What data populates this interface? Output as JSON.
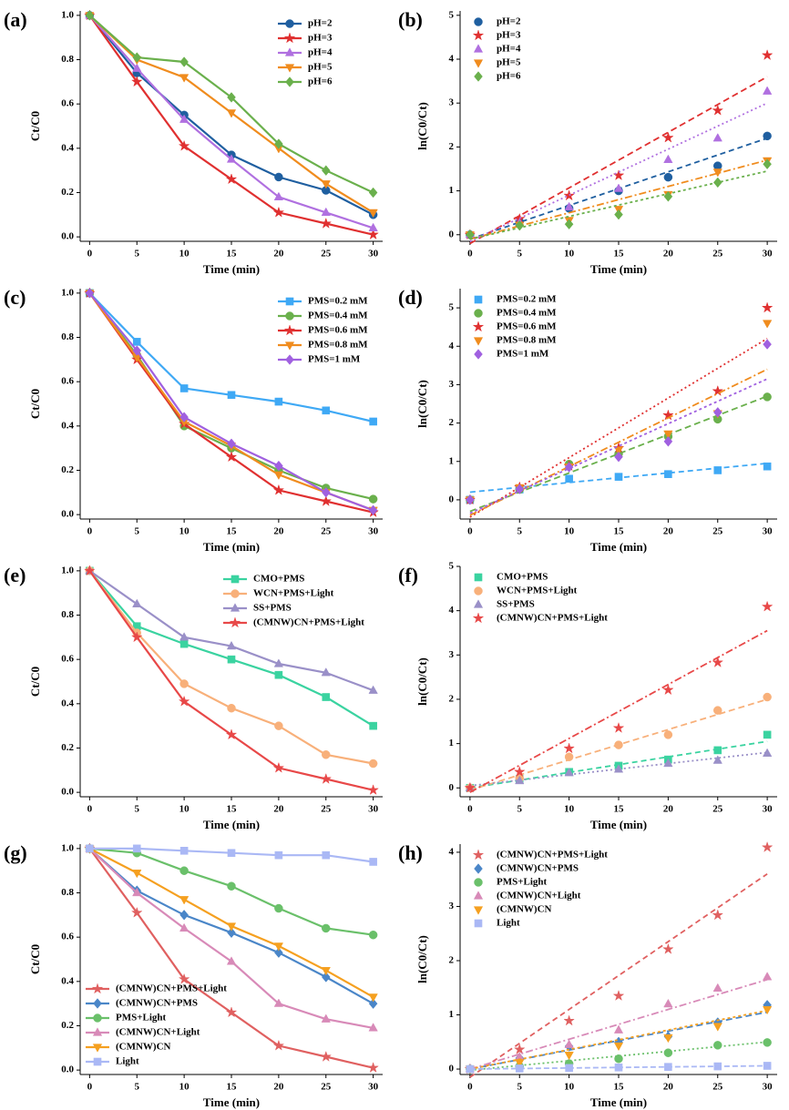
{
  "chart_data": [
    {
      "type": "line",
      "label": "(a)",
      "x_label": "Time (min)",
      "y_label": "Ct/C0",
      "legend": "upper right",
      "x": [
        0,
        5,
        10,
        15,
        20,
        25,
        30
      ],
      "xlim": [
        -1,
        31
      ],
      "xticks": [
        0,
        5,
        10,
        15,
        20,
        25,
        30
      ],
      "ylim": [
        -0.02,
        1.02
      ],
      "yticks": [
        {
          "value": 0,
          "label": "0.0"
        },
        0.2,
        0.4,
        0.6,
        0.8,
        {
          "value": 1,
          "label": "1.0"
        }
      ],
      "series": [
        {
          "name": "pH=2",
          "color": "#1f5fa0",
          "marker": "circle",
          "values": [
            1,
            0.74,
            0.55,
            0.37,
            0.27,
            0.21,
            0.1
          ]
        },
        {
          "name": "pH=3",
          "color": "#e03030",
          "marker": "star",
          "values": [
            1,
            0.7,
            0.41,
            0.26,
            0.11,
            0.06,
            0.01
          ]
        },
        {
          "name": "pH=4",
          "color": "#b070e0",
          "marker": "triangle",
          "values": [
            1,
            0.76,
            0.53,
            0.35,
            0.18,
            0.11,
            0.04
          ]
        },
        {
          "name": "pH=5",
          "color": "#f08c1e",
          "marker": "triangle-down",
          "values": [
            1,
            0.8,
            0.72,
            0.56,
            0.4,
            0.24,
            0.11
          ]
        },
        {
          "name": "pH=6",
          "color": "#6ab04c",
          "marker": "diamond",
          "values": [
            1,
            0.81,
            0.79,
            0.63,
            0.42,
            0.3,
            0.2
          ]
        }
      ]
    },
    {
      "type": "scatter",
      "label": "(b)",
      "x_label": "Time (min)",
      "y_label": "ln(C0/Ct)",
      "legend": "upper left",
      "x": [
        0,
        5,
        10,
        15,
        20,
        25,
        30
      ],
      "fit_x": [
        0,
        30
      ],
      "xlim": [
        -1,
        31
      ],
      "xticks": [
        0,
        5,
        10,
        15,
        20,
        25,
        30
      ],
      "ylim": [
        -0.15,
        5.1
      ],
      "yticks": [
        0,
        1,
        2,
        3,
        4,
        5
      ],
      "series": [
        {
          "name": "pH=2",
          "color": "#1f5fa0",
          "marker": "circle",
          "values": [
            0,
            0.3,
            0.6,
            1.0,
            1.31,
            1.57,
            2.25
          ],
          "fit": [
            -0.1,
            2.2
          ]
        },
        {
          "name": "pH=3",
          "color": "#e03030",
          "marker": "star",
          "values": [
            0,
            0.36,
            0.89,
            1.35,
            2.21,
            2.83,
            4.09
          ],
          "fit": [
            -0.2,
            3.6
          ]
        },
        {
          "name": "pH=4",
          "color": "#b070e0",
          "marker": "triangle",
          "values": [
            0,
            0.27,
            0.63,
            1.05,
            1.71,
            2.2,
            3.27
          ],
          "fit": [
            -0.15,
            3.0
          ]
        },
        {
          "name": "pH=5",
          "color": "#f08c1e",
          "marker": "triangle-down",
          "values": [
            0,
            0.22,
            0.33,
            0.58,
            0.92,
            1.43,
            1.69
          ],
          "fit": [
            -0.1,
            1.7
          ]
        },
        {
          "name": "pH=6",
          "color": "#6ab04c",
          "marker": "diamond",
          "values": [
            0,
            0.21,
            0.24,
            0.46,
            0.87,
            1.19,
            1.61
          ],
          "fit": [
            -0.1,
            1.45
          ]
        }
      ]
    },
    {
      "type": "line",
      "label": "(c)",
      "x_label": "Time (min)",
      "y_label": "Ct/C0",
      "legend": "upper right",
      "x": [
        0,
        5,
        10,
        15,
        20,
        25,
        30
      ],
      "xlim": [
        -1,
        31
      ],
      "xticks": [
        0,
        5,
        10,
        15,
        20,
        25,
        30
      ],
      "ylim": [
        -0.02,
        1.02
      ],
      "yticks": [
        {
          "value": 0,
          "label": "0.0"
        },
        0.2,
        0.4,
        0.6,
        0.8,
        {
          "value": 1,
          "label": "1.0"
        }
      ],
      "series": [
        {
          "name": "PMS=0.2 mM",
          "color": "#3fa9f5",
          "marker": "square",
          "values": [
            1,
            0.78,
            0.57,
            0.54,
            0.51,
            0.47,
            0.42
          ]
        },
        {
          "name": "PMS=0.4 mM",
          "color": "#6ab04c",
          "marker": "circle",
          "values": [
            1,
            0.72,
            0.4,
            0.3,
            0.2,
            0.12,
            0.07
          ]
        },
        {
          "name": "PMS=0.6 mM",
          "color": "#e03030",
          "marker": "star",
          "values": [
            1,
            0.7,
            0.41,
            0.26,
            0.11,
            0.06,
            0.01
          ]
        },
        {
          "name": "PMS=0.8 mM",
          "color": "#f08c1e",
          "marker": "triangle-down",
          "values": [
            1,
            0.71,
            0.42,
            0.31,
            0.18,
            0.1,
            0.02
          ]
        },
        {
          "name": "PMS=1 mM",
          "color": "#a060e0",
          "marker": "diamond",
          "values": [
            1,
            0.74,
            0.44,
            0.32,
            0.22,
            0.1,
            0.02
          ]
        }
      ]
    },
    {
      "type": "scatter",
      "label": "(d)",
      "x_label": "Time (min)",
      "y_label": "ln(C0/Ct)",
      "legend": "upper left",
      "x": [
        0,
        5,
        10,
        15,
        20,
        25,
        30
      ],
      "fit_x": [
        0,
        30
      ],
      "xlim": [
        -1,
        31
      ],
      "xticks": [
        0,
        5,
        10,
        15,
        20,
        25,
        30
      ],
      "ylim": [
        -0.5,
        5.5
      ],
      "yticks": [
        0,
        1,
        2,
        3,
        4,
        5
      ],
      "series": [
        {
          "name": "PMS=0.2 mM",
          "color": "#3fa9f5",
          "marker": "square",
          "values": [
            0,
            0.27,
            0.55,
            0.6,
            0.67,
            0.77,
            0.87
          ],
          "fit": [
            0.2,
            0.95
          ]
        },
        {
          "name": "PMS=0.4 mM",
          "color": "#6ab04c",
          "marker": "circle",
          "values": [
            0,
            0.27,
            0.93,
            1.2,
            1.65,
            2.1,
            2.68
          ],
          "fit": [
            -0.3,
            2.7
          ]
        },
        {
          "name": "PMS=0.6 mM",
          "color": "#e03030",
          "marker": "star",
          "values": [
            0,
            0.33,
            0.88,
            1.35,
            2.2,
            2.83,
            5.0
          ],
          "fit": [
            -0.45,
            4.2
          ]
        },
        {
          "name": "PMS=0.8 mM",
          "color": "#f08c1e",
          "marker": "triangle-down",
          "values": [
            0,
            0.32,
            0.86,
            1.3,
            1.72,
            2.25,
            4.6
          ],
          "fit": [
            -0.4,
            3.4
          ]
        },
        {
          "name": "PMS=1 mM",
          "color": "#a060e0",
          "marker": "diamond",
          "values": [
            0,
            0.28,
            0.85,
            1.12,
            1.52,
            2.28,
            4.05
          ],
          "fit": [
            -0.35,
            3.15
          ]
        }
      ]
    },
    {
      "type": "line",
      "label": "(e)",
      "x_label": "Time (min)",
      "y_label": "Ct/C0",
      "legend": "upper right",
      "x": [
        0,
        5,
        10,
        15,
        20,
        25,
        30
      ],
      "xlim": [
        -1,
        31
      ],
      "xticks": [
        0,
        5,
        10,
        15,
        20,
        25,
        30
      ],
      "ylim": [
        -0.02,
        1.02
      ],
      "yticks": [
        {
          "value": 0,
          "label": "0.0"
        },
        0.2,
        0.4,
        0.6,
        0.8,
        {
          "value": 1,
          "label": "1.0"
        }
      ],
      "series": [
        {
          "name": "CMO+PMS",
          "color": "#3ad3a0",
          "marker": "square",
          "values": [
            1,
            0.75,
            0.67,
            0.6,
            0.53,
            0.43,
            0.3
          ]
        },
        {
          "name": "WCN+PMS+Light",
          "color": "#f8b07a",
          "marker": "circle",
          "values": [
            1,
            0.72,
            0.49,
            0.38,
            0.3,
            0.17,
            0.13
          ]
        },
        {
          "name": "SS+PMS",
          "color": "#9a90c8",
          "marker": "triangle",
          "values": [
            1,
            0.85,
            0.7,
            0.66,
            0.58,
            0.54,
            0.46
          ]
        },
        {
          "name": "(CMNW)CN+PMS+Light",
          "color": "#e84848",
          "marker": "star",
          "values": [
            1,
            0.7,
            0.41,
            0.26,
            0.11,
            0.06,
            0.01
          ]
        }
      ]
    },
    {
      "type": "scatter",
      "label": "(f)",
      "x_label": "Time (min)",
      "y_label": "ln(C0/Ct)",
      "legend": "upper left",
      "x": [
        0,
        5,
        10,
        15,
        20,
        25,
        30
      ],
      "fit_x": [
        0,
        30
      ],
      "xlim": [
        -1,
        31
      ],
      "xticks": [
        0,
        5,
        10,
        15,
        20,
        25,
        30
      ],
      "ylim": [
        -0.2,
        5
      ],
      "yticks": [
        0,
        1,
        2,
        3,
        4,
        5
      ],
      "series": [
        {
          "name": "CMO+PMS",
          "color": "#3ad3a0",
          "marker": "square",
          "values": [
            0,
            0.2,
            0.36,
            0.5,
            0.64,
            0.85,
            1.2
          ],
          "fit": [
            0,
            1.05
          ]
        },
        {
          "name": "WCN+PMS+Light",
          "color": "#f8b07a",
          "marker": "circle",
          "values": [
            0,
            0.22,
            0.7,
            0.97,
            1.2,
            1.75,
            2.05
          ],
          "fit": [
            -0.05,
            2.0
          ]
        },
        {
          "name": "SS+PMS",
          "color": "#9a90c8",
          "marker": "triangle",
          "values": [
            0,
            0.16,
            0.34,
            0.42,
            0.55,
            0.62,
            0.78
          ],
          "fit": [
            0.05,
            0.8
          ]
        },
        {
          "name": "(CMNW)CN+PMS+Light",
          "color": "#e84848",
          "marker": "star",
          "values": [
            0,
            0.36,
            0.89,
            1.35,
            2.21,
            2.83,
            4.09
          ],
          "fit": [
            -0.1,
            3.55
          ]
        }
      ]
    },
    {
      "type": "line",
      "label": "(g)",
      "x_label": "Time (min)",
      "y_label": "Ct/C0",
      "legend": "lower left",
      "x": [
        0,
        5,
        10,
        15,
        20,
        25,
        30
      ],
      "xlim": [
        -1,
        31
      ],
      "xticks": [
        0,
        5,
        10,
        15,
        20,
        25,
        30
      ],
      "ylim": [
        -0.02,
        1.02
      ],
      "yticks": [
        {
          "value": 0,
          "label": "0.0"
        },
        0.2,
        0.4,
        0.6,
        0.8,
        {
          "value": 1,
          "label": "1.0"
        }
      ],
      "series": [
        {
          "name": "(CMNW)CN+PMS+Light",
          "color": "#e06060",
          "marker": "star",
          "values": [
            1,
            0.71,
            0.41,
            0.26,
            0.11,
            0.06,
            0.01
          ]
        },
        {
          "name": "(CMNW)CN+PMS",
          "color": "#4a86c8",
          "marker": "diamond",
          "values": [
            1,
            0.81,
            0.7,
            0.62,
            0.53,
            0.42,
            0.3
          ]
        },
        {
          "name": "PMS+Light",
          "color": "#6ac06a",
          "marker": "circle",
          "values": [
            1,
            0.98,
            0.9,
            0.83,
            0.73,
            0.64,
            0.61
          ]
        },
        {
          "name": "(CMNW)CN+Light",
          "color": "#d88ab8",
          "marker": "triangle",
          "values": [
            1,
            0.8,
            0.64,
            0.49,
            0.3,
            0.23,
            0.19
          ]
        },
        {
          "name": "(CMNW)CN",
          "color": "#f5a020",
          "marker": "triangle-down",
          "values": [
            1,
            0.89,
            0.77,
            0.65,
            0.56,
            0.45,
            0.33
          ]
        },
        {
          "name": "Light",
          "color": "#aab8f5",
          "marker": "square",
          "values": [
            1,
            1.0,
            0.99,
            0.98,
            0.97,
            0.97,
            0.94
          ]
        }
      ]
    },
    {
      "type": "scatter",
      "label": "(h)",
      "x_label": "Time (min)",
      "y_label": "ln(C0/Ct)",
      "legend": "upper left",
      "x": [
        0,
        5,
        10,
        15,
        20,
        25,
        30
      ],
      "fit_x": [
        0,
        30
      ],
      "xlim": [
        -1,
        31
      ],
      "xticks": [
        0,
        5,
        10,
        15,
        20,
        25,
        30
      ],
      "ylim": [
        -0.1,
        4.15
      ],
      "yticks": [
        0,
        1,
        2,
        3,
        4
      ],
      "series": [
        {
          "name": "(CMNW)CN+PMS+Light",
          "color": "#e06060",
          "marker": "star",
          "values": [
            0,
            0.36,
            0.89,
            1.35,
            2.21,
            2.84,
            4.09
          ],
          "fit": [
            -0.15,
            3.6
          ]
        },
        {
          "name": "(CMNW)CN+PMS",
          "color": "#4a86c8",
          "marker": "diamond",
          "values": [
            0,
            0.2,
            0.42,
            0.5,
            0.6,
            0.86,
            1.18
          ],
          "fit": [
            0,
            1.05
          ]
        },
        {
          "name": "PMS+Light",
          "color": "#6ac06a",
          "marker": "circle",
          "values": [
            0,
            0.05,
            0.1,
            0.19,
            0.3,
            0.44,
            0.49
          ],
          "fit": [
            -0.02,
            0.5
          ]
        },
        {
          "name": "(CMNW)CN+Light",
          "color": "#d88ab8",
          "marker": "triangle",
          "values": [
            0,
            0.22,
            0.45,
            0.72,
            1.2,
            1.49,
            1.7
          ],
          "fit": [
            0,
            1.65
          ]
        },
        {
          "name": "(CMNW)CN",
          "color": "#f5a020",
          "marker": "triangle-down",
          "values": [
            0,
            0.12,
            0.26,
            0.43,
            0.58,
            0.79,
            1.1
          ],
          "fit": [
            0,
            1.08
          ]
        },
        {
          "name": "Light",
          "color": "#aab8f5",
          "marker": "square",
          "values": [
            0,
            0.01,
            0.02,
            0.03,
            0.04,
            0.05,
            0.06
          ],
          "fit": [
            0,
            0.06
          ]
        }
      ]
    }
  ]
}
